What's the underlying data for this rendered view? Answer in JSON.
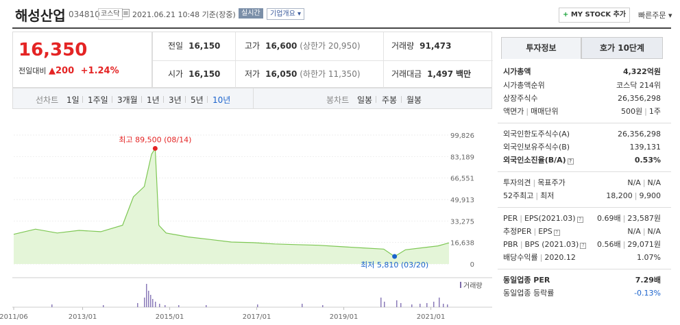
{
  "header": {
    "name": "해성산업",
    "code": "034810",
    "market": "코스닥",
    "datetime": "2021.06.21 10:48 기준(장중)",
    "realtime_badge": "실시간",
    "company_button": "기업개요 ▾",
    "mystock_plus": "+",
    "mystock_label": "MY STOCK 추가",
    "quick_order": "빠른주문 ▾"
  },
  "price": {
    "current": "16,350",
    "change_label": "전일대비",
    "change_arrow": "▲",
    "change_amount": "200",
    "change_pct": "+1.24%"
  },
  "info": {
    "prev_label": "전일",
    "prev_value": "16,150",
    "high_label": "고가",
    "high_value": "16,600",
    "upper_limit": "(상한가 20,950)",
    "volume_label": "거래량",
    "volume_value": "91,473",
    "open_label": "시가",
    "open_value": "16,150",
    "low_label": "저가",
    "low_value": "16,050",
    "lower_limit": "(하한가 11,350)",
    "amount_label": "거래대금",
    "amount_value": "1,497",
    "amount_unit": "백만"
  },
  "chart_tabs": {
    "line_label": "선차트",
    "line_periods": [
      "1일",
      "1주일",
      "3개월",
      "1년",
      "3년",
      "5년",
      "10년"
    ],
    "selected": "10년",
    "candle_label": "봉차트",
    "candle_periods": [
      "일봉",
      "주봉",
      "월봉"
    ]
  },
  "chart_data": {
    "type": "area",
    "title": "",
    "y_ticks": [
      "99,826",
      "83,189",
      "66,551",
      "49,913",
      "33,275",
      "16,638",
      "0"
    ],
    "ylim": [
      0,
      99826
    ],
    "x_ticks": [
      "2011/06",
      "2013/01",
      "2015/01",
      "2017/01",
      "2019/01",
      "2021/01"
    ],
    "x": [
      "2011/06",
      "2011/12",
      "2012/06",
      "2012/12",
      "2013/06",
      "2013/12",
      "2014/03",
      "2014/06",
      "2014/08",
      "2014/09",
      "2014/10",
      "2014/12",
      "2015/06",
      "2015/12",
      "2016/06",
      "2016/12",
      "2017/06",
      "2017/12",
      "2018/06",
      "2018/12",
      "2019/06",
      "2019/12",
      "2020/03",
      "2020/06",
      "2020/12",
      "2021/03",
      "2021/06"
    ],
    "values": [
      23000,
      27000,
      24000,
      26000,
      25000,
      30000,
      52000,
      60000,
      85000,
      89500,
      30000,
      24000,
      21000,
      19000,
      17000,
      16500,
      15500,
      15000,
      14500,
      13500,
      12500,
      11500,
      5810,
      11000,
      13000,
      14000,
      16350
    ],
    "high_label": "최고 89,500 (08/14)",
    "high_value": 89500,
    "low_label": "최저 5,810 (03/20)",
    "low_value": 5810,
    "volume_label": "거래량",
    "area_color": "#e4f5d8",
    "line_color": "#7dc753"
  },
  "side": {
    "tab_invest": "투자정보",
    "tab_quote": "호가 10단계",
    "market_cap_label": "시가총액",
    "market_cap_value": "4,322억원",
    "rank_label": "시가총액순위",
    "rank_value": "코스닥 214위",
    "shares_label": "상장주식수",
    "shares_value": "26,356,298",
    "face_label": "액면가",
    "lot_label": "매매단위",
    "face_value": "500원",
    "lot_value": "1주",
    "foreign_limit_label": "외국인한도주식수(A)",
    "foreign_limit_value": "26,356,298",
    "foreign_hold_label": "외국인보유주식수(B)",
    "foreign_hold_value": "139,131",
    "foreign_ratio_label": "외국인소진율(B/A)",
    "foreign_ratio_value": "0.53%",
    "opinion_label": "투자의견",
    "target_label": "목표주가",
    "opinion_value": "N/A",
    "target_value": "N/A",
    "w52_high_label": "52주최고",
    "w52_low_label": "최저",
    "w52_high_value": "18,200",
    "w52_low_value": "9,900",
    "per_label": "PER",
    "eps_label": "EPS(2021.03)",
    "per_value": "0.69배",
    "eps_value": "23,587원",
    "est_per_label": "추정PER",
    "est_eps_label": "EPS",
    "est_per_value": "N/A",
    "est_eps_value": "N/A",
    "pbr_label": "PBR",
    "bps_label": "BPS (2021.03)",
    "pbr_value": "0.56배",
    "bps_value": "29,071원",
    "div_label": "배당수익률",
    "div_date": "2020.12",
    "div_value": "1.07%",
    "sector_per_label": "동일업종 PER",
    "sector_per_value": "7.29배",
    "sector_rate_label": "동일업종 등락률",
    "sector_rate_value": "-0.13%"
  }
}
